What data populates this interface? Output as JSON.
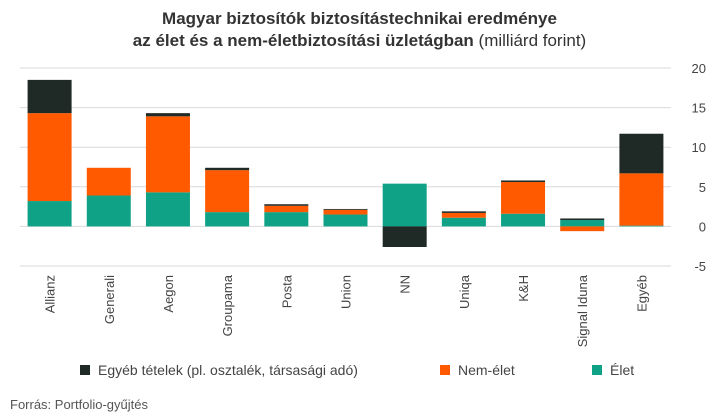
{
  "title": {
    "line1": "Magyar biztosítók biztosítástechnikai eredménye",
    "line2_bold": "az élet és a nem-életbiztosítási üzletágban",
    "line2_unit": " (milliárd forint)"
  },
  "source": "Forrás:  Portfolio-gyűjtés",
  "colors": {
    "egyeb": "#1f2a26",
    "nemelet": "#ff5a00",
    "elet": "#0fa286",
    "grid": "#d9d9d9"
  },
  "chart_data": {
    "type": "bar",
    "stacked": true,
    "categories": [
      "Allianz",
      "Generali",
      "Aegon",
      "Groupama",
      "Posta",
      "Union",
      "NN",
      "Uniqa",
      "K&H",
      "Signal Iduna",
      "Egyéb"
    ],
    "series": [
      {
        "name": "Élet",
        "color": "#0fa286",
        "values": [
          3.2,
          3.9,
          4.3,
          1.8,
          1.8,
          1.5,
          5.4,
          1.1,
          1.6,
          0.8,
          0.1
        ]
      },
      {
        "name": "Nem-élet",
        "color": "#ff5a00",
        "values": [
          11.1,
          3.5,
          9.6,
          5.3,
          0.8,
          0.6,
          0.0,
          0.6,
          4.0,
          -0.6,
          6.6
        ]
      },
      {
        "name": "Egyéb tételek (pl. osztalék, társasági adó)",
        "color": "#1f2a26",
        "values": [
          4.2,
          0.0,
          0.4,
          0.3,
          0.2,
          0.1,
          -2.6,
          0.2,
          0.2,
          0.2,
          5.0
        ]
      }
    ],
    "yticks": [
      -5,
      0,
      5,
      10,
      15,
      20
    ],
    "ylim": [
      -5,
      20
    ],
    "grid": true,
    "legend_position": "bottom"
  },
  "legend": [
    {
      "label": "Egyéb tételek (pl. osztalék, társasági adó)",
      "color": "#1f2a26"
    },
    {
      "label": "Nem-élet",
      "color": "#ff5a00"
    },
    {
      "label": "Élet",
      "color": "#0fa286"
    }
  ]
}
